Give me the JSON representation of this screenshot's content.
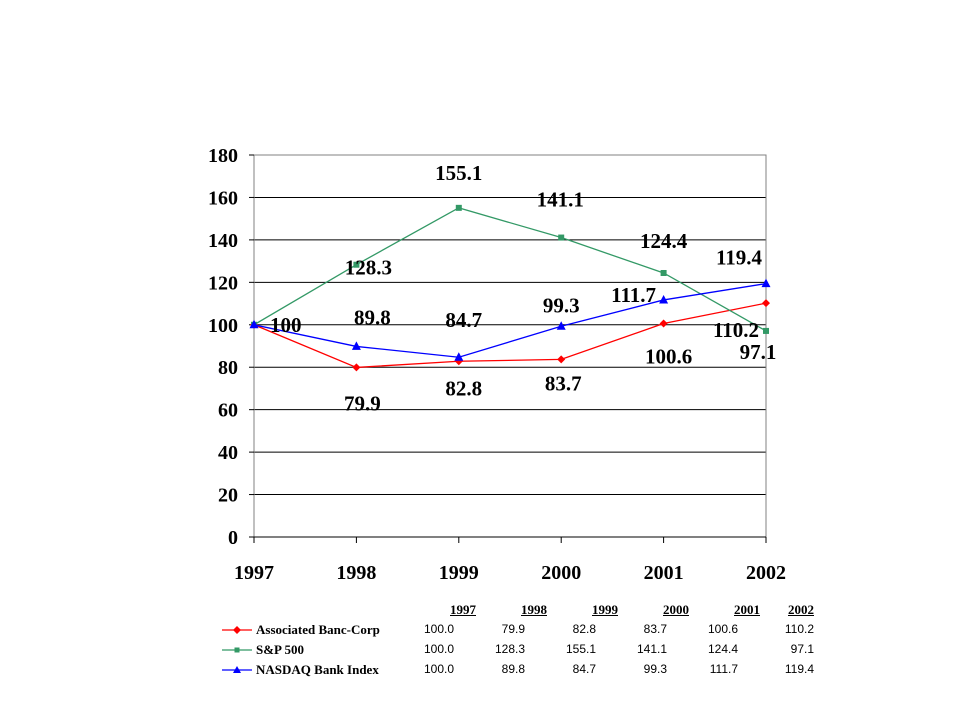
{
  "chart_data": {
    "type": "line",
    "categories": [
      "1997",
      "1998",
      "1999",
      "2000",
      "2001",
      "2002"
    ],
    "ylim": [
      0,
      180
    ],
    "yticks": [
      0,
      20,
      40,
      60,
      80,
      100,
      120,
      140,
      160,
      180
    ],
    "grid": true,
    "series": [
      {
        "name": "Associated Banc-Corp",
        "color": "#ff0000",
        "marker": "diamond",
        "values": [
          100,
          79.9,
          82.8,
          83.7,
          100.6,
          110.2
        ],
        "labels": [
          "100",
          "79.9",
          "82.8",
          "83.7",
          "100.6",
          "110.2"
        ]
      },
      {
        "name": "S&P 500",
        "color": "#339966",
        "marker": "square",
        "values": [
          100,
          128.3,
          155.1,
          141.1,
          124.4,
          97.1
        ],
        "labels": [
          "",
          "128.3",
          "155.1",
          "141.1",
          "124.4",
          "97.1"
        ]
      },
      {
        "name": "NASDAQ Bank Index",
        "color": "#0000ff",
        "marker": "triangle",
        "values": [
          100,
          89.8,
          84.7,
          99.3,
          111.7,
          119.4
        ],
        "labels": [
          "",
          "89.8",
          "84.7",
          "99.3",
          "111.7",
          "119.4"
        ]
      }
    ]
  },
  "table": {
    "headers": [
      "1997",
      "1998",
      "1999",
      "2000",
      "2001",
      "2002"
    ],
    "rows": [
      {
        "label": "Associated Banc-Corp",
        "values": [
          "100.0",
          "79.9",
          "82.8",
          "83.7",
          "100.6",
          "110.2"
        ]
      },
      {
        "label": "S&P 500",
        "values": [
          "100.0",
          "128.3",
          "155.1",
          "141.1",
          "124.4",
          "97.1"
        ]
      },
      {
        "label": "NASDAQ Bank Index",
        "values": [
          "100.0",
          "89.8",
          "84.7",
          "99.3",
          "111.7",
          "119.4"
        ]
      }
    ]
  }
}
